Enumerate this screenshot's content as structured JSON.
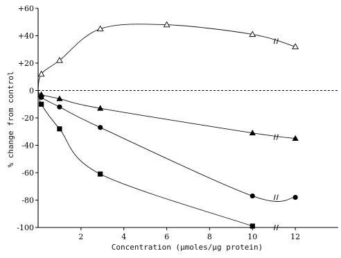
{
  "chart_data": {
    "type": "line",
    "xlabel": "Concentration (µmoles/µg protein)",
    "ylabel": "% change from control",
    "xlim": [
      0,
      14
    ],
    "ylim": [
      -100,
      60
    ],
    "x_ticks": [
      2,
      4,
      6,
      8,
      10,
      12
    ],
    "y_ticks": [
      60,
      40,
      20,
      0,
      -20,
      -40,
      -60,
      -80,
      -100
    ],
    "y_tick_labels": [
      "+60",
      "+40",
      "+20",
      "0",
      "-20",
      "-40",
      "-60",
      "-80",
      "-100"
    ],
    "reference_line": 0,
    "series": [
      {
        "marker": "open-triangle",
        "x": [
          0,
          0.15,
          1,
          2.9,
          6,
          10,
          12
        ],
        "y": [
          0,
          12,
          22,
          45,
          48,
          41,
          32
        ]
      },
      {
        "marker": "filled-triangle",
        "x": [
          0,
          0.15,
          1,
          2.9,
          10,
          12
        ],
        "y": [
          0,
          -3,
          -6,
          -13,
          -31,
          -35
        ]
      },
      {
        "marker": "filled-circle",
        "x": [
          0,
          0.15,
          1,
          2.9,
          10,
          12
        ],
        "y": [
          0,
          -5,
          -12,
          -27,
          -77,
          -78
        ]
      },
      {
        "marker": "filled-square",
        "x": [
          0,
          0.15,
          1,
          2.9,
          10
        ],
        "y": [
          0,
          -10,
          -28,
          -61,
          -99
        ]
      }
    ]
  }
}
